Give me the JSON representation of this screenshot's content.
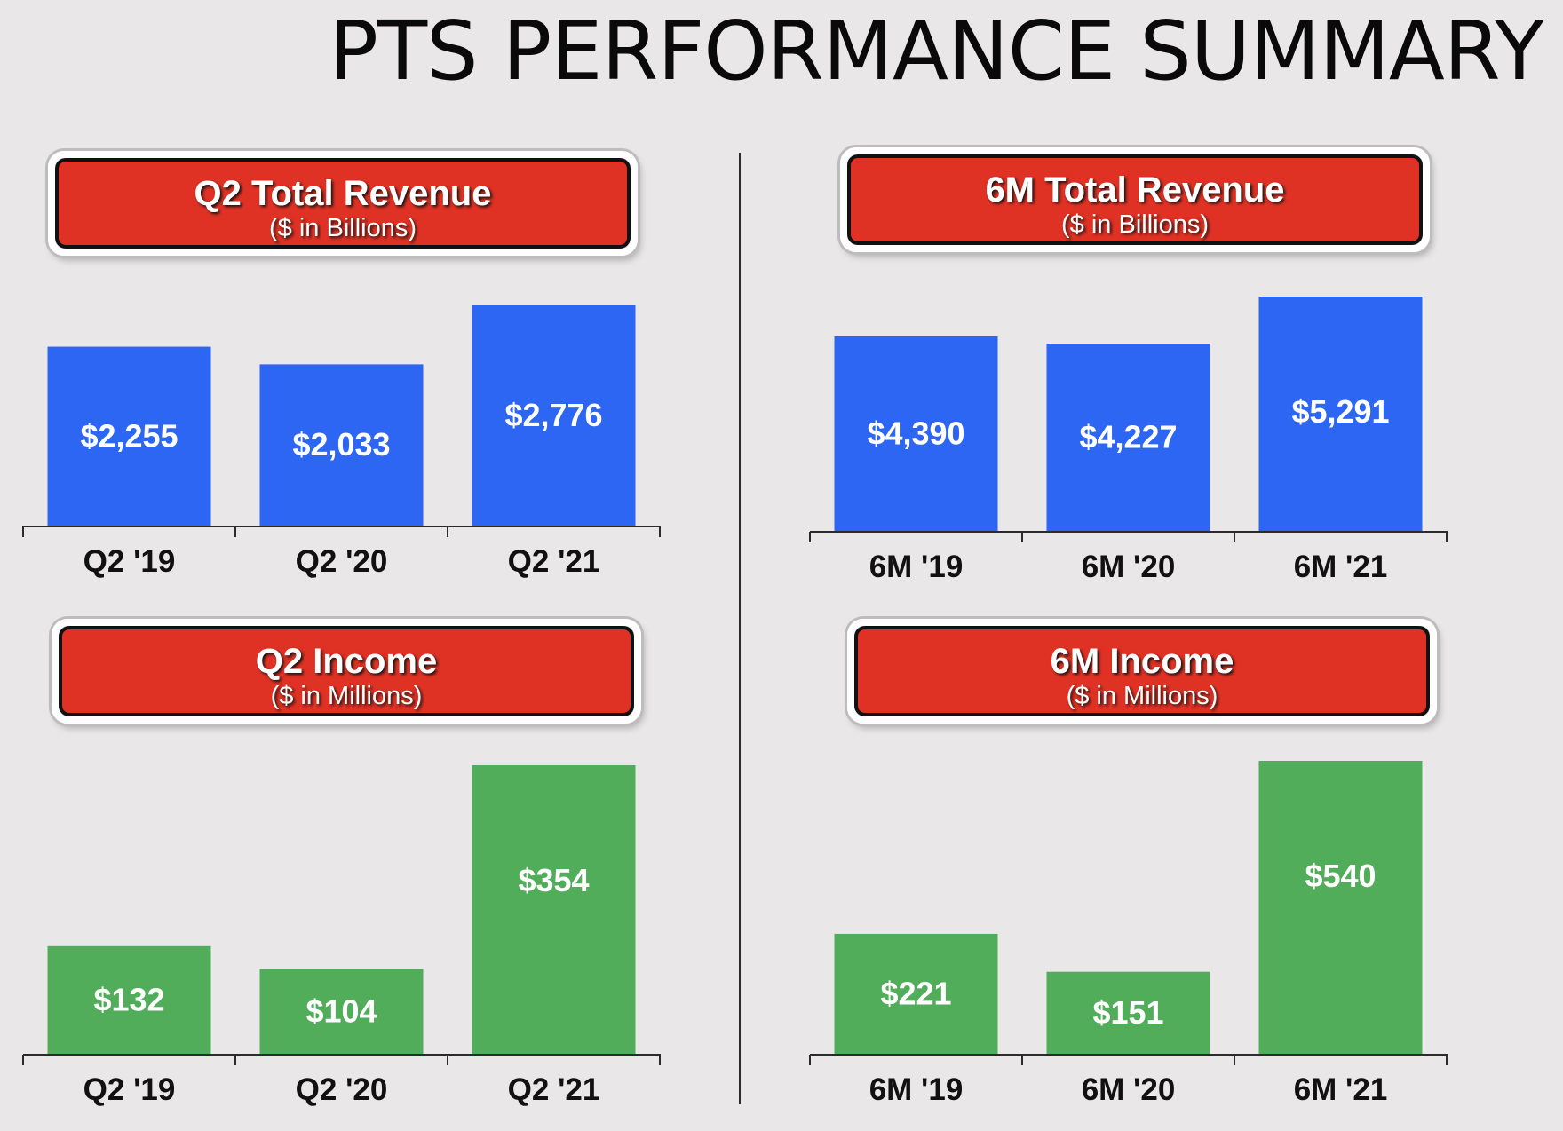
{
  "title": "PTS PERFORMANCE SUMMARY",
  "colors": {
    "background": "#e9e7e7",
    "banner": "#e03224",
    "revenue_bar": "#2d66f3",
    "income_bar": "#52ad5a",
    "axis": "#2b2b2b"
  },
  "chart_data": [
    {
      "type": "bar",
      "title": "Q2 Total Revenue",
      "subtitle": "($ in Billions)",
      "categories": [
        "Q2 '19",
        "Q2 '20",
        "Q2 '21"
      ],
      "values": [
        2255,
        2033,
        2776
      ],
      "value_labels": [
        "$2,255",
        "$2,033",
        "$2,776"
      ],
      "bar_color": "#2d66f3",
      "ylim": [
        0,
        2776
      ]
    },
    {
      "type": "bar",
      "title": "6M Total Revenue",
      "subtitle": "($ in Billions)",
      "categories": [
        "6M '19",
        "6M '20",
        "6M '21"
      ],
      "values": [
        4390,
        4227,
        5291
      ],
      "value_labels": [
        "$4,390",
        "$4,227",
        "$5,291"
      ],
      "bar_color": "#2d66f3",
      "ylim": [
        0,
        5291
      ]
    },
    {
      "type": "bar",
      "title": "Q2 Income",
      "subtitle": "($ in Millions)",
      "categories": [
        "Q2 '19",
        "Q2 '20",
        "Q2 '21"
      ],
      "values": [
        132,
        104,
        354
      ],
      "value_labels": [
        "$132",
        "$104",
        "$354"
      ],
      "bar_color": "#52ad5a",
      "ylim": [
        0,
        354
      ]
    },
    {
      "type": "bar",
      "title": "6M Income",
      "subtitle": "($ in Millions)",
      "categories": [
        "6M '19",
        "6M '20",
        "6M '21"
      ],
      "values": [
        221,
        151,
        540
      ],
      "value_labels": [
        "$221",
        "$151",
        "$540"
      ],
      "bar_color": "#52ad5a",
      "ylim": [
        0,
        540
      ]
    }
  ]
}
